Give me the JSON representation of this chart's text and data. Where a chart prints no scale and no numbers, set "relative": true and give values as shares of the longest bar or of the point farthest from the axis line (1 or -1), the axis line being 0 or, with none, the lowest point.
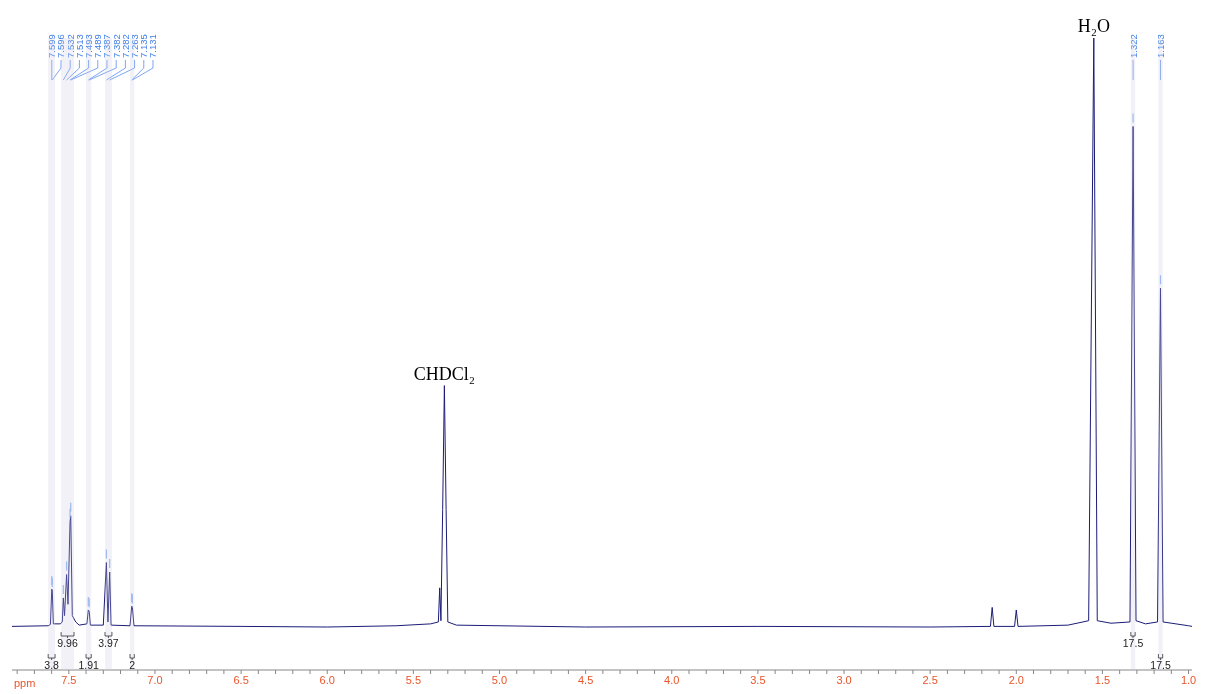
{
  "chart_data": {
    "type": "line",
    "relative": true,
    "xlabel": "ppm",
    "xlim": [
      7.83,
      0.98
    ],
    "xticks": [
      {
        "value": 7.8,
        "label": null
      },
      {
        "value": 7.7,
        "label": null
      },
      {
        "value": 7.6,
        "label": null
      },
      7.5,
      {
        "value": 7.4,
        "label": null
      },
      {
        "value": 7.3,
        "label": null
      },
      {
        "value": 7.2,
        "label": null
      },
      {
        "value": 7.1,
        "label": null
      },
      {
        "value": 7,
        "label": "7.0"
      },
      {
        "value": 6.9,
        "label": null
      },
      {
        "value": 6.8,
        "label": null
      },
      {
        "value": 6.7,
        "label": null
      },
      {
        "value": 6.6,
        "label": null
      },
      6.5,
      {
        "value": 6.4,
        "label": null
      },
      {
        "value": 6.3,
        "label": null
      },
      {
        "value": 6.2,
        "label": null
      },
      {
        "value": 6.1,
        "label": null
      },
      {
        "value": 6,
        "label": "6.0"
      },
      {
        "value": 5.9,
        "label": null
      },
      {
        "value": 5.8,
        "label": null
      },
      {
        "value": 5.7,
        "label": null
      },
      {
        "value": 5.6,
        "label": null
      },
      5.5,
      {
        "value": 5.4,
        "label": null
      },
      {
        "value": 5.3,
        "label": null
      },
      {
        "value": 5.2,
        "label": null
      },
      {
        "value": 5.1,
        "label": null
      },
      {
        "value": 5,
        "label": "5.0"
      },
      {
        "value": 4.9,
        "label": null
      },
      {
        "value": 4.8,
        "label": null
      },
      {
        "value": 4.7,
        "label": null
      },
      {
        "value": 4.6,
        "label": null
      },
      4.5,
      {
        "value": 4.4,
        "label": null
      },
      {
        "value": 4.3,
        "label": null
      },
      {
        "value": 4.2,
        "label": null
      },
      {
        "value": 4.1,
        "label": null
      },
      {
        "value": 4,
        "label": "4.0"
      },
      {
        "value": 3.9,
        "label": null
      },
      {
        "value": 3.8,
        "label": null
      },
      {
        "value": 3.7,
        "label": null
      },
      {
        "value": 3.6,
        "label": null
      },
      3.5,
      {
        "value": 3.4,
        "label": null
      },
      {
        "value": 3.3,
        "label": null
      },
      {
        "value": 3.2,
        "label": null
      },
      {
        "value": 3.1,
        "label": null
      },
      {
        "value": 3,
        "label": "3.0"
      },
      {
        "value": 2.9,
        "label": null
      },
      {
        "value": 2.8,
        "label": null
      },
      {
        "value": 2.7,
        "label": null
      },
      {
        "value": 2.6,
        "label": null
      },
      2.5,
      {
        "value": 2.4,
        "label": null
      },
      {
        "value": 2.3,
        "label": null
      },
      {
        "value": 2.2,
        "label": null
      },
      {
        "value": 2.1,
        "label": null
      },
      {
        "value": 2,
        "label": "2.0"
      },
      {
        "value": 1.9,
        "label": null
      },
      {
        "value": 1.8,
        "label": null
      },
      {
        "value": 1.7,
        "label": null
      },
      {
        "value": 1.6,
        "label": null
      },
      1.5,
      {
        "value": 1.4,
        "label": null
      },
      {
        "value": 1.3,
        "label": null
      },
      {
        "value": 1.2,
        "label": null
      },
      {
        "value": 1.1,
        "label": null
      },
      {
        "value": 1,
        "label": "1.0"
      }
    ],
    "series": [
      {
        "color": "#1c1c78",
        "x": [
          7.83,
          7.62,
          7.607,
          7.599,
          7.596,
          7.59,
          7.55,
          7.538,
          7.532,
          7.525,
          7.513,
          7.505,
          7.493,
          7.489,
          7.48,
          7.46,
          7.44,
          7.395,
          7.387,
          7.382,
          7.375,
          7.3,
          7.282,
          7.273,
          7.263,
          7.255,
          7.145,
          7.135,
          7.131,
          7.122,
          6.5,
          6,
          5.6,
          5.4,
          5.355,
          5.347,
          5.34,
          5.33,
          5.32,
          5.31,
          5.3,
          5.25,
          4.5,
          3.5,
          2.5,
          2.15,
          2.14,
          2.13,
          2.01,
          2.0,
          1.99,
          1.7,
          1.58,
          1.55,
          1.53,
          1.45,
          1.34,
          1.322,
          1.305,
          1.25,
          1.18,
          1.163,
          1.148,
          1.0,
          0.98
        ],
        "values": [
          0.069,
          0.07,
          0.072,
          0.128,
          0.125,
          0.073,
          0.073,
          0.076,
          0.114,
          0.086,
          0.151,
          0.104,
          0.235,
          0.244,
          0.086,
          0.076,
          0.071,
          0.073,
          0.095,
          0.093,
          0.071,
          0.071,
          0.17,
          0.076,
          0.155,
          0.071,
          0.07,
          0.101,
          0.099,
          0.07,
          0.069,
          0.068,
          0.07,
          0.073,
          0.076,
          0.13,
          0.078,
          0.254,
          0.45,
          0.254,
          0.076,
          0.071,
          0.068,
          0.069,
          0.068,
          0.069,
          0.099,
          0.069,
          0.069,
          0.095,
          0.069,
          0.071,
          0.078,
          1,
          0.078,
          0.074,
          0.076,
          0.86,
          0.078,
          0.073,
          0.076,
          0.604,
          0.076,
          0.07,
          0.069
        ]
      }
    ],
    "marker": "none",
    "line_style": "solid",
    "grid": false,
    "annotations": [
      {
        "text": "H₂O",
        "x": 1.55,
        "y": 1
      },
      {
        "text": "CHDCl₂",
        "x": 5.32,
        "y": 0.45
      },
      {
        "text": "7.599",
        "x": 7.599
      },
      {
        "text": "7.596",
        "x": 7.596
      },
      {
        "text": "7.532",
        "x": 7.532
      },
      {
        "text": "7.513",
        "x": 7.513
      },
      {
        "text": "7.493",
        "x": 7.493
      },
      {
        "text": "7.489",
        "x": 7.489
      },
      {
        "text": "7.387",
        "x": 7.387
      },
      {
        "text": "7.382",
        "x": 7.382
      },
      {
        "text": "7.282",
        "x": 7.282
      },
      {
        "text": "7.263",
        "x": 7.263
      },
      {
        "text": "7.135",
        "x": 7.135
      },
      {
        "text": "7.131",
        "x": 7.131
      },
      {
        "text": "1.322",
        "x": 1.322
      },
      {
        "text": "1.163",
        "x": 1.163
      }
    ],
    "bands": [
      {
        "axis": "x",
        "from": 7.62,
        "to": 7.58,
        "label": "3.8"
      },
      {
        "axis": "x",
        "from": 7.545,
        "to": 7.47,
        "label": "9.96"
      },
      {
        "axis": "x",
        "from": 7.4,
        "to": 7.37,
        "label": "1.91"
      },
      {
        "axis": "x",
        "from": 7.29,
        "to": 7.25,
        "label": "3.97"
      },
      {
        "axis": "x",
        "from": 7.145,
        "to": 7.12,
        "label": "2"
      },
      {
        "axis": "x",
        "from": 1.335,
        "to": 1.31,
        "label": "17.5"
      },
      {
        "axis": "x",
        "from": 1.175,
        "to": 1.15,
        "label": "17.5"
      }
    ]
  }
}
